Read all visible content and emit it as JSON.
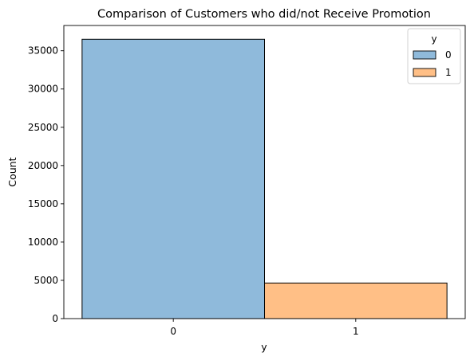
{
  "chart_data": {
    "type": "bar",
    "title": "Comparison of Customers who did/not Receive Promotion",
    "xlabel": "y",
    "ylabel": "Count",
    "categories": [
      "0",
      "1"
    ],
    "values": [
      36500,
      4650
    ],
    "ylim": [
      0,
      38300
    ],
    "yticks": [
      0,
      5000,
      10000,
      15000,
      20000,
      25000,
      30000,
      35000
    ],
    "grid": false,
    "legend": {
      "title": "y",
      "placement": "top-right",
      "entries": [
        {
          "label": "0",
          "color": "#8fbadb"
        },
        {
          "label": "1",
          "color": "#ffbf86"
        }
      ]
    },
    "colors": [
      "#8fbadb",
      "#ffbf86"
    ],
    "edge_color": "#000000"
  }
}
